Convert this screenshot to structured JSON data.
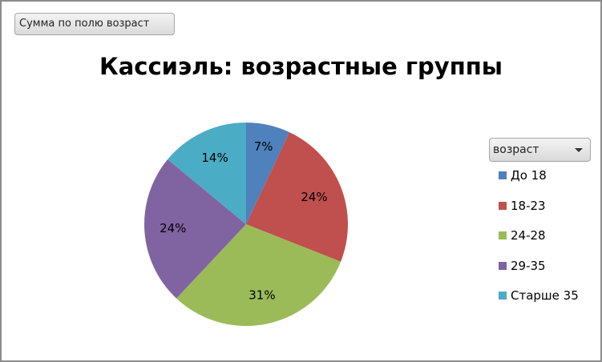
{
  "field_button": "Сумма по полю возраст",
  "legend_filter": {
    "label": "возраст",
    "icon": "dropdown-arrow-icon"
  },
  "chart_data": {
    "type": "pie",
    "title": "Кассиэль: возрастные группы",
    "categories": [
      "До 18",
      "18-23",
      "24-28",
      "29-35",
      "Старше 35"
    ],
    "values": [
      7,
      24,
      31,
      24,
      14
    ],
    "data_labels": [
      "7%",
      "24%",
      "31%",
      "24%",
      "14%"
    ],
    "colors": [
      "#4f81bd",
      "#c0504d",
      "#9bbb59",
      "#8064a2",
      "#4bacc6"
    ],
    "legend_position": "right"
  }
}
